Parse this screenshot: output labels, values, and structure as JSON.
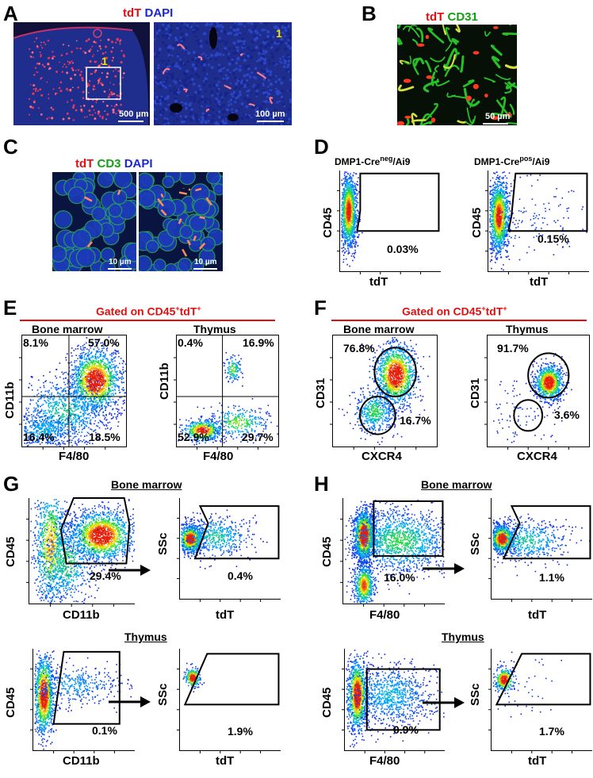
{
  "panels": {
    "A": {
      "letter": "A",
      "stain": [
        "tdT",
        "DAPI"
      ],
      "scale_left": "500 µm",
      "scale_right": "100 µm",
      "roi": "1",
      "roi_right": "1"
    },
    "B": {
      "letter": "B",
      "stain": [
        "tdT",
        "CD31"
      ],
      "scale": "50 µm"
    },
    "C": {
      "letter": "C",
      "stain": [
        "tdT",
        "CD3",
        "DAPI"
      ],
      "scale_left": "10 µm",
      "scale_right": "10 µm"
    },
    "D": {
      "letter": "D",
      "left": {
        "title_main": "DMP1-Cre",
        "title_sup": "neg",
        "title_end": "/Ai9",
        "ylabel": "CD45",
        "xlabel": "tdT",
        "pct": "0.03%"
      },
      "right": {
        "title_main": "DMP1-Cre",
        "title_sup": "pos",
        "title_end": "/Ai9",
        "ylabel": "CD45",
        "xlabel": "tdT",
        "pct": "0.15%"
      }
    },
    "E": {
      "letter": "E",
      "gate_text": "Gated on CD45",
      "gate_sup1": "+",
      "gate_mid": "tdT",
      "gate_sup2": "+",
      "left": {
        "title": "Bone marrow",
        "ylabel": "CD11b",
        "xlabel": "F4/80",
        "q_ul": "8.1%",
        "q_ur": "57.0%",
        "q_ll": "16.4%",
        "q_lr": "18.5%"
      },
      "right": {
        "title": "Thymus",
        "ylabel": "CD11b",
        "xlabel": "F4/80",
        "q_ul": "0.4%",
        "q_ur": "16.9%",
        "q_ll": "52.9%",
        "q_lr": "29.7%"
      }
    },
    "F": {
      "letter": "F",
      "gate_text": "Gated on CD45",
      "gate_sup1": "+",
      "gate_mid": "tdT",
      "gate_sup2": "+",
      "left": {
        "title": "Bone marrow",
        "ylabel": "CD31",
        "xlabel": "CXCR4",
        "pct_hi": "76.8%",
        "pct_lo": "16.7%"
      },
      "right": {
        "title": "Thymus",
        "ylabel": "CD31",
        "xlabel": "CXCR4",
        "pct_hi": "91.7%",
        "pct_lo": "3.6%"
      }
    },
    "G": {
      "letter": "G",
      "bm": {
        "title": "Bone marrow",
        "y1": "CD45",
        "x1": "CD11b",
        "p1": "29.4%",
        "y2": "SSc",
        "x2": "tdT",
        "p2": "0.4%"
      },
      "th": {
        "title": "Thymus",
        "y1": "CD45",
        "x1": "CD11b",
        "p1": "0.1%",
        "y2": "SSc",
        "x2": "tdT",
        "p2": "1.9%"
      }
    },
    "H": {
      "letter": "H",
      "bm": {
        "title": "Bone marrow",
        "y1": "CD45",
        "x1": "F4/80",
        "p1": "16.0%",
        "y2": "SSc",
        "x2": "tdT",
        "p2": "1.1%"
      },
      "th": {
        "title": "Thymus",
        "y1": "CD45",
        "x1": "F4/80",
        "p1": "0.9%",
        "y2": "SSc",
        "x2": "tdT",
        "p2": "1.7%"
      }
    }
  },
  "colors": {
    "tdT": "#e01010",
    "DAPI": "#1a24d8",
    "CD31": "#12a012",
    "CD3": "#12a012",
    "gate_rule": "#e01010"
  }
}
